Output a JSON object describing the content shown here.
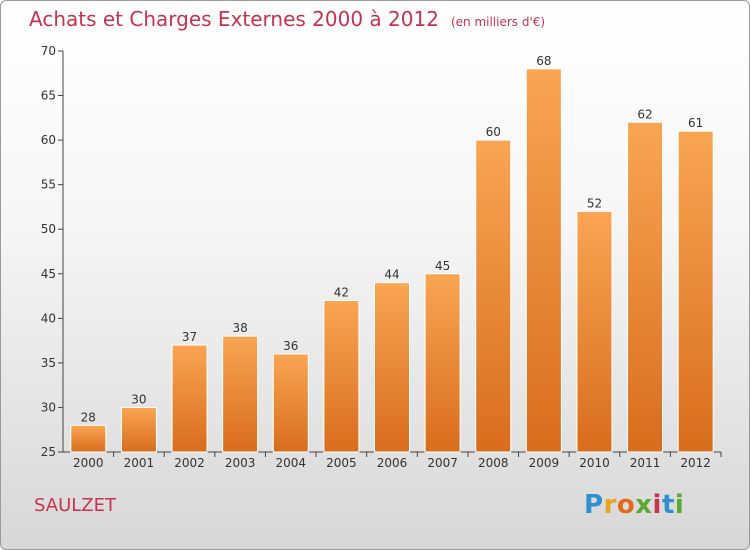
{
  "header": {
    "title": "Achats et Charges Externes 2000 à 2012",
    "subtitle": "(en milliers d'€)"
  },
  "location": "SAULZET",
  "logo": {
    "text": "Proxiti",
    "letters": [
      "P",
      "r",
      "o",
      "x",
      "i",
      "t",
      "i"
    ]
  },
  "colors": {
    "title": "#c8324e",
    "bar_light": "#f9a552",
    "bar_dark": "#d86d1c",
    "logo": [
      "#2f8fd0",
      "#e8a51c",
      "#e26a1a",
      "#5aa832",
      "#c8324e",
      "#2f8fd0",
      "#5aa832"
    ]
  },
  "chart_data": {
    "type": "bar",
    "categories": [
      "2000",
      "2001",
      "2002",
      "2003",
      "2004",
      "2005",
      "2006",
      "2007",
      "2008",
      "2009",
      "2010",
      "2011",
      "2012"
    ],
    "values": [
      28,
      30,
      37,
      38,
      36,
      42,
      44,
      45,
      60,
      68,
      52,
      62,
      61
    ],
    "ylim": [
      25,
      70
    ],
    "yticks": [
      25,
      30,
      35,
      40,
      45,
      50,
      55,
      60,
      65,
      70
    ],
    "grid": false,
    "data_labels": true
  }
}
